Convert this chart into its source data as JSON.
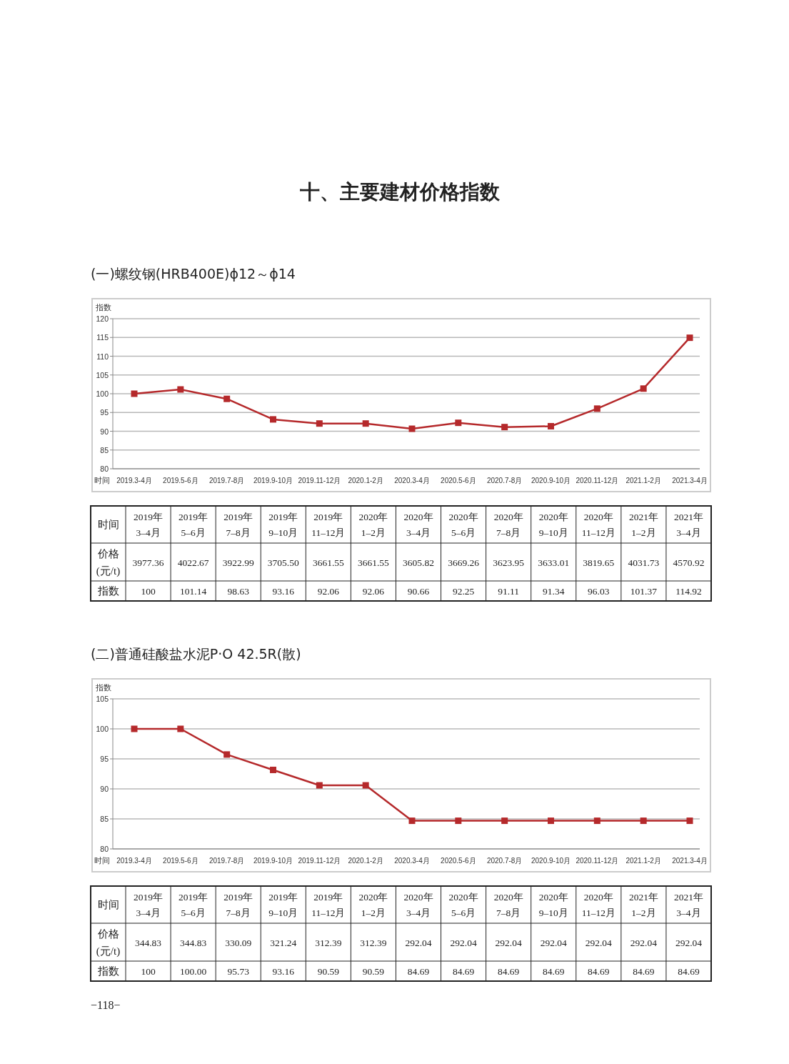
{
  "chart_data": [
    {
      "type": "line",
      "subtitle": "十、主要建材价格指数",
      "title": "(一)螺纹钢(HRB400E)ϕ12～ϕ14",
      "xlabel": "时间",
      "ylabel": "指数",
      "categories": [
        "2019.3-4月",
        "2019.5-6月",
        "2019.7-8月",
        "2019.9-10月",
        "2019.11-12月",
        "2020.1-2月",
        "2020.3-4月",
        "2020.5-6月",
        "2020.7-8月",
        "2020.9-10月",
        "2020.11-12月",
        "2021.1-2月",
        "2021.3-4月"
      ],
      "series": [
        {
          "color": "#b5292b",
          "values": [
            100,
            101.14,
            98.63,
            93.16,
            92.06,
            92.06,
            90.66,
            92.25,
            91.11,
            91.34,
            96.03,
            101.37,
            114.92
          ],
          "value_labels": [
            "100",
            "101.14",
            "98.63",
            "93.16",
            "92.06",
            "92.06",
            "90.66",
            "92.25",
            "91.11",
            "91.34",
            "96.03",
            "101.37",
            "114.92"
          ]
        }
      ],
      "ylim": [
        80,
        120
      ],
      "yticks": [
        80,
        85,
        90,
        95,
        100,
        105,
        110,
        115,
        120
      ],
      "grid": "y",
      "marker": "square",
      "line_style": "solid",
      "annotations": [
        "时间",
        "价格\n(元/t)",
        "指数",
        "2019年\n3–4月",
        "2019年\n5–6月",
        "2019年\n7–8月",
        "2019年\n9–10月",
        "2019年\n11–12月",
        "2020年\n1–2月",
        "2020年\n3–4月",
        "2020年\n5–6月",
        "2020年\n7–8月",
        "2020年\n9–10月",
        "2020年\n11–12月",
        "2021年\n1–2月",
        "2021年\n3–4月",
        "3977.36",
        "4022.67",
        "3922.99",
        "3705.50",
        "3661.55",
        "3661.55",
        "3605.82",
        "3669.26",
        "3623.95",
        "3633.01",
        "3819.65",
        "4031.73",
        "4570.92"
      ]
    },
    {
      "type": "line",
      "title": "(二)普通硅酸盐水泥P·O 42.5R(散)",
      "xlabel": "时间",
      "ylabel": "指数",
      "categories": [
        "2019.3-4月",
        "2019.5-6月",
        "2019.7-8月",
        "2019.9-10月",
        "2019.11-12月",
        "2020.1-2月",
        "2020.3-4月",
        "2020.5-6月",
        "2020.7-8月",
        "2020.9-10月",
        "2020.11-12月",
        "2021.1-2月",
        "2021.3-4月"
      ],
      "series": [
        {
          "color": "#b5292b",
          "values": [
            100,
            100.0,
            95.73,
            93.16,
            90.59,
            90.59,
            84.69,
            84.69,
            84.69,
            84.69,
            84.69,
            84.69,
            84.69
          ],
          "value_labels": [
            "100",
            "100.00",
            "95.73",
            "93.16",
            "90.59",
            "90.59",
            "84.69",
            "84.69",
            "84.69",
            "84.69",
            "84.69",
            "84.69",
            "84.69"
          ]
        }
      ],
      "ylim": [
        80,
        105
      ],
      "yticks": [
        80,
        85,
        90,
        95,
        100,
        105
      ],
      "grid": "y",
      "marker": "square",
      "line_style": "solid",
      "annotations": [
        "时间",
        "价格\n(元/t)",
        "指数",
        "2019年\n3–4月",
        "2019年\n5–6月",
        "2019年\n7–8月",
        "2019年\n9–10月",
        "2019年\n11–12月",
        "2020年\n1–2月",
        "2020年\n3–4月",
        "2020年\n5–6月",
        "2020年\n7–8月",
        "2020年\n9–10月",
        "2020年\n11–12月",
        "2021年\n1–2月",
        "2021年\n3–4月",
        "344.83",
        "344.83",
        "330.09",
        "321.24",
        "312.39",
        "312.39",
        "292.04",
        "292.04",
        "292.04",
        "292.04",
        "292.04",
        "292.04",
        "292.04",
        "−118−"
      ]
    }
  ]
}
